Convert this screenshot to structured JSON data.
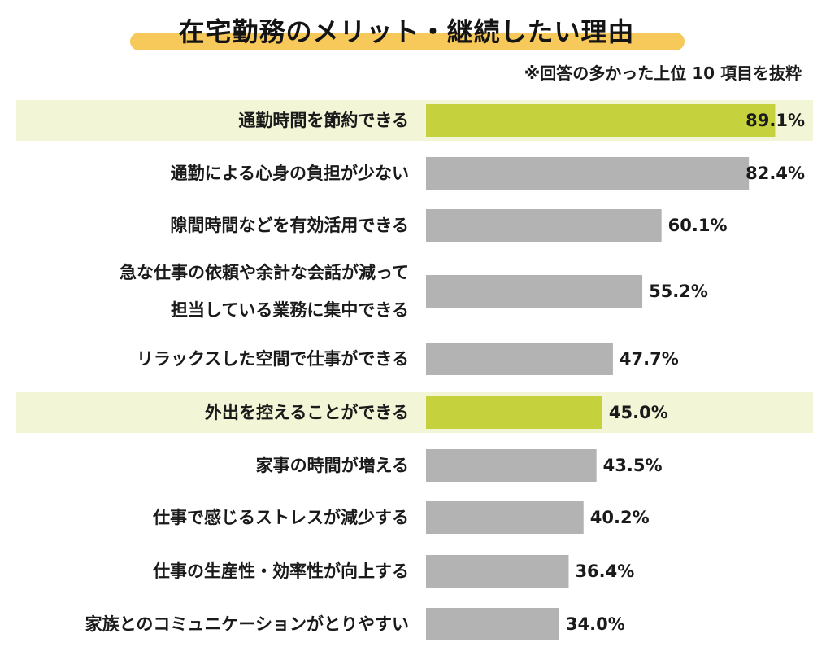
{
  "title": "在宅勤務のメリット・継続したい理由",
  "note": "※回答の多かった上位 10 項目を抜粋",
  "colors": {
    "highlight_bar": "#c6d23d",
    "highlight_row": "#f2f5d6",
    "normal_bar": "#b3b3b3",
    "title_highlight": "#f7c95a"
  },
  "chart_data": {
    "type": "bar",
    "orientation": "horizontal",
    "unit": "%",
    "xlim": [
      0,
      100
    ],
    "grid": false,
    "categories": [
      [
        "通勤時間を節約できる"
      ],
      [
        "通勤による心身の負担が少ない"
      ],
      [
        "隙間時間などを有効活用できる"
      ],
      [
        "急な仕事の依頼や余計な会話が減って",
        "担当している業務に集中できる"
      ],
      [
        "リラックスした空間で仕事ができる"
      ],
      [
        "外出を控えることができる"
      ],
      [
        "家事の時間が増える"
      ],
      [
        "仕事で感じるストレスが減少する"
      ],
      [
        "仕事の生産性・効率性が向上する"
      ],
      [
        "家族とのコミュニケーションがとりやすい"
      ]
    ],
    "values": [
      89.1,
      82.4,
      60.1,
      55.2,
      47.7,
      45.0,
      43.5,
      40.2,
      36.4,
      34.0
    ],
    "value_labels": [
      "89.1%",
      "82.4%",
      "60.1%",
      "55.2%",
      "47.7%",
      "45.0%",
      "43.5%",
      "40.2%",
      "36.4%",
      "34.0%"
    ],
    "highlighted": [
      true,
      false,
      false,
      false,
      false,
      true,
      false,
      false,
      false,
      false
    ]
  }
}
